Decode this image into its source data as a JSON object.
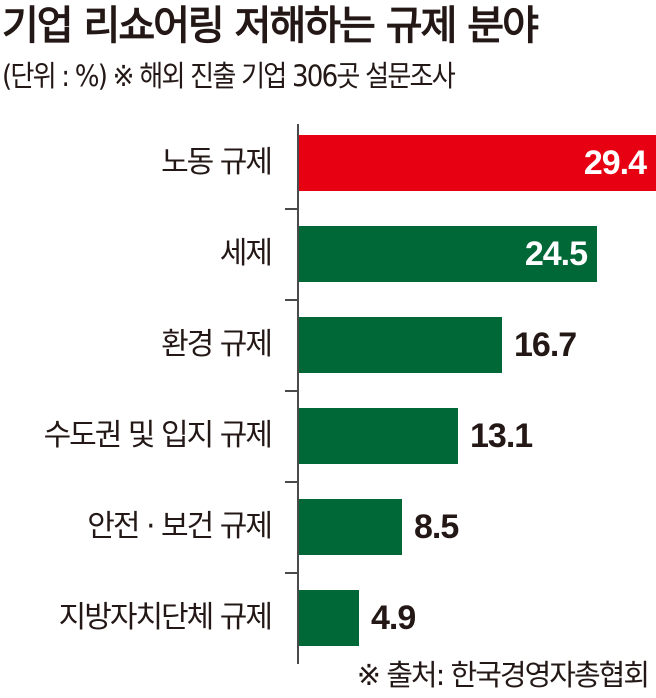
{
  "header": {
    "title": "기업 리쇼어링 저해하는 규제 분야",
    "subtitle": "(단위 : %) ※ 해외 진출 기업 306곳 설문조사"
  },
  "footer": {
    "source": "※ 출처: 한국경영자총협회"
  },
  "colors": {
    "highlight": "#e60012",
    "bar": "#006837",
    "axis": "#4a4a4a"
  },
  "chart_data": {
    "type": "bar",
    "orientation": "horizontal",
    "title": "기업 리쇼어링 저해하는 규제 분야",
    "subtitle": "(단위 : %) ※ 해외 진출 기업 306곳 설문조사",
    "unit": "%",
    "categories": [
      "노동 규제",
      "세제",
      "환경 규제",
      "수도권 및 입지 규제",
      "안전 · 보건 규제",
      "지방자치단체 규제"
    ],
    "values": [
      29.4,
      24.5,
      16.7,
      13.1,
      8.5,
      4.9
    ],
    "value_labels": [
      "29.4",
      "24.5",
      "16.7",
      "13.1",
      "8.5",
      "4.9"
    ],
    "highlight_index": 0,
    "xlabel": "",
    "ylabel": "",
    "grid": false,
    "legend": null,
    "source": "※ 출처: 한국경영자총협회"
  }
}
